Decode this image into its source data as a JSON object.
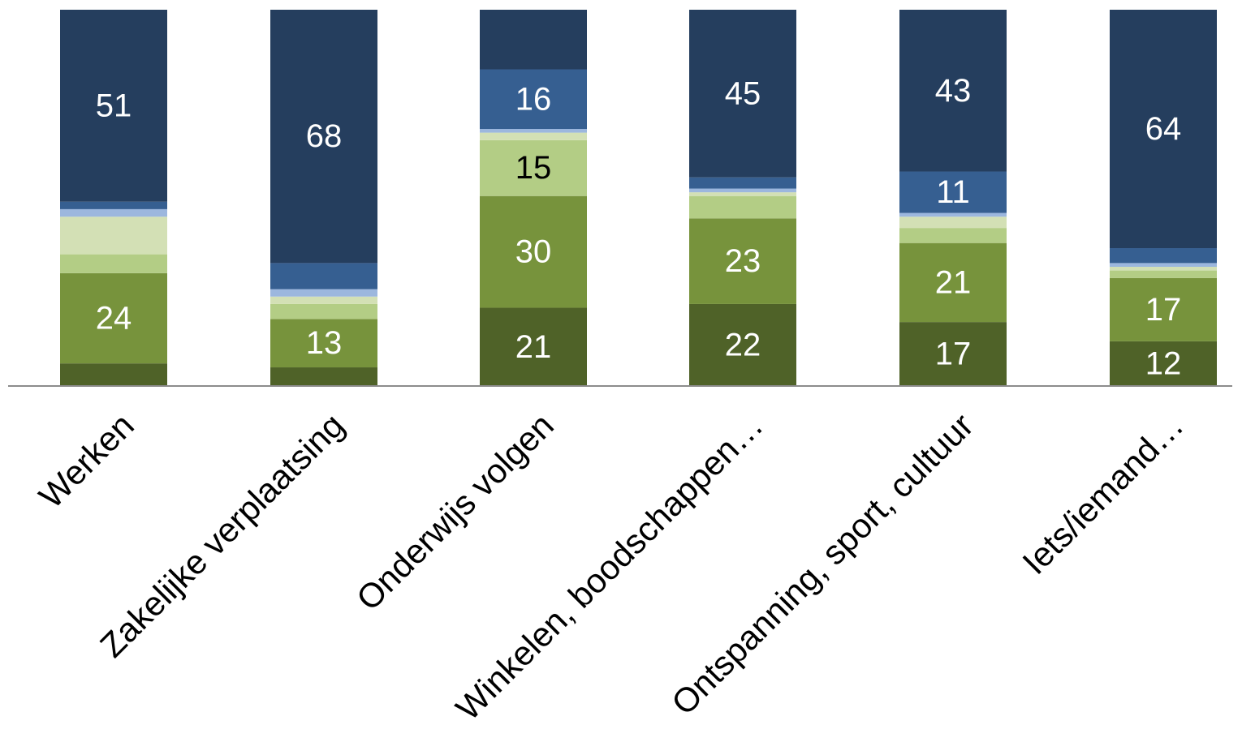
{
  "chart_data": {
    "type": "bar",
    "stacked": true,
    "normalized_to_percent": true,
    "categories": [
      "Werken",
      "Zakelijke verplaatsing",
      "Onderwijs volgen",
      "Winkelen, boodschappen…",
      "Ontspanning, sport, cultuur",
      "Iets/iemand…"
    ],
    "series": [
      {
        "color": "#4f6228",
        "values": [
          6,
          5,
          21,
          22,
          17,
          12
        ],
        "labels": [
          "",
          "",
          "21",
          "22",
          "17",
          "12"
        ],
        "label_color": "#ffffff"
      },
      {
        "color": "#77933c",
        "values": [
          24,
          13,
          30,
          23,
          21,
          17
        ],
        "labels": [
          "24",
          "13",
          "30",
          "23",
          "21",
          "17"
        ],
        "label_color": "#ffffff"
      },
      {
        "color": "#b3cd85",
        "values": [
          5,
          4,
          15,
          6,
          4,
          2
        ],
        "labels": [
          "",
          "",
          "15",
          "",
          "",
          ""
        ],
        "label_color": "#000000"
      },
      {
        "color": "#d3e0b5",
        "values": [
          10,
          2,
          2,
          1,
          3,
          1
        ],
        "labels": [
          "",
          "",
          "",
          "",
          "",
          ""
        ],
        "label_color": "#000000"
      },
      {
        "color": "#9cb7de",
        "values": [
          2,
          2,
          1,
          1,
          1,
          1
        ],
        "labels": [
          "",
          "",
          "",
          "",
          "",
          ""
        ],
        "label_color": "#ffffff"
      },
      {
        "color": "#365f91",
        "values": [
          2,
          7,
          16,
          3,
          11,
          4
        ],
        "labels": [
          "",
          "",
          "16",
          "",
          "11",
          ""
        ],
        "label_color": "#ffffff"
      },
      {
        "color": "#253e5e",
        "values": [
          51,
          68,
          16,
          45,
          43,
          64
        ],
        "labels": [
          "51",
          "68",
          "",
          "45",
          "43",
          "64"
        ],
        "label_color": "#ffffff"
      }
    ],
    "ylim": [
      0,
      100
    ],
    "grid": false,
    "legend": "none"
  }
}
